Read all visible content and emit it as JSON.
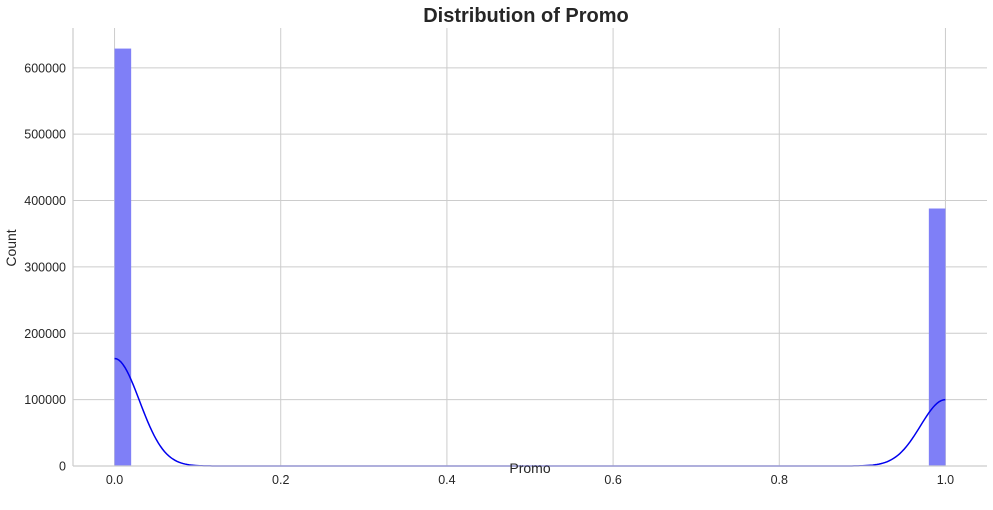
{
  "chart_data": {
    "type": "bar",
    "title": "Distribution of Promo",
    "xlabel": "Promo",
    "ylabel": "Count",
    "xlim": [
      -0.05,
      1.05
    ],
    "ylim": [
      0,
      660000
    ],
    "xticks": [
      0.0,
      0.2,
      0.4,
      0.6,
      0.8,
      1.0
    ],
    "xtick_labels": [
      "0.0",
      "0.2",
      "0.4",
      "0.6",
      "0.8",
      "1.0"
    ],
    "yticks": [
      0,
      100000,
      200000,
      300000,
      400000,
      500000,
      600000
    ],
    "ytick_labels": [
      "0",
      "100000",
      "200000",
      "300000",
      "400000",
      "500000",
      "600000"
    ],
    "grid": true,
    "bin_width": 0.02,
    "bars": [
      {
        "x_start": 0.0,
        "x_end": 0.02,
        "value": 629000
      },
      {
        "x_start": 0.98,
        "x_end": 1.0,
        "value": 388000
      }
    ],
    "kde": {
      "peaks": [
        {
          "center": 0.0,
          "height": 162000,
          "sigma": 0.03
        },
        {
          "center": 1.0,
          "height": 100000,
          "sigma": 0.03
        }
      ],
      "x_range": [
        0.0,
        1.0
      ]
    },
    "colors": {
      "bar_fill": "#7f7ff7",
      "kde_line": "#0000ee",
      "grid": "#cccccc",
      "text": "#262626"
    }
  }
}
